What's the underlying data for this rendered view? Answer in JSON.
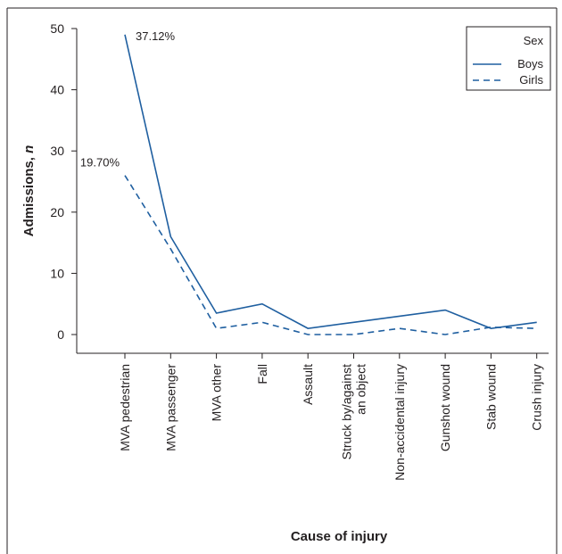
{
  "chart_data": {
    "type": "line",
    "categories": [
      "MVA pedestrian",
      "MVA passenger",
      "MVA other",
      "Fall",
      "Assault",
      "Struck by/against an object",
      "Non-accidental injury",
      "Gunshot wound",
      "Stab wound",
      "Crush injury"
    ],
    "category_lines": [
      [
        "MVA pedestrian"
      ],
      [
        "MVA passenger"
      ],
      [
        "MVA other"
      ],
      [
        "Fall"
      ],
      [
        "Assault"
      ],
      [
        "Struck by/against",
        "an object"
      ],
      [
        "Non-accidental injury"
      ],
      [
        "Gunshot wound"
      ],
      [
        "Stab wound"
      ],
      [
        "Crush injury"
      ]
    ],
    "series": [
      {
        "name": "Boys",
        "values": [
          49,
          16,
          3.5,
          5,
          1,
          2,
          3,
          4,
          1,
          2
        ],
        "style": "solid",
        "color": "#1f5fa0"
      },
      {
        "name": "Girls",
        "values": [
          26,
          14,
          1,
          2,
          0,
          0,
          1,
          0,
          1.2,
          1
        ],
        "style": "dashed",
        "color": "#1f5fa0"
      }
    ],
    "ylim": [
      0,
      50
    ],
    "yticks": [
      0,
      10,
      20,
      30,
      40,
      50
    ],
    "xlabel": "Cause of injury",
    "ylabel_main": "Admissions, ",
    "ylabel_italic": "n",
    "legend": {
      "title": "Sex",
      "position": "top-right"
    },
    "annotations": [
      {
        "text": "37.12%",
        "series": "Boys",
        "index": 0
      },
      {
        "text": "19.70%",
        "series": "Girls",
        "index": 0
      }
    ],
    "grid": false
  }
}
